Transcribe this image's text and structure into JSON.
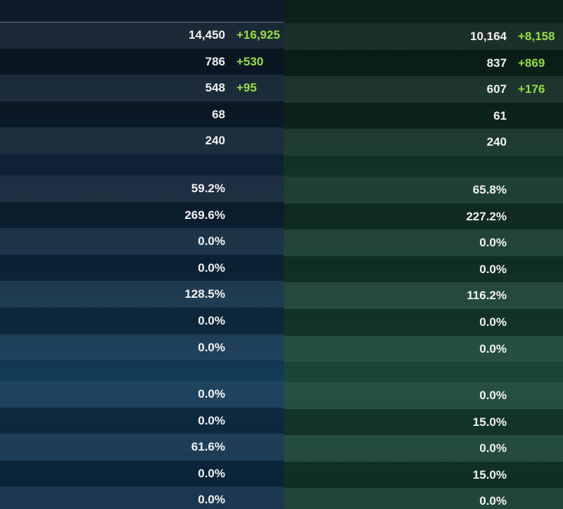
{
  "left": {
    "sections": [
      [
        {
          "value": "14,450",
          "bonus": "+16,925"
        },
        {
          "value": "786",
          "bonus": "+530"
        },
        {
          "value": "548",
          "bonus": "+95"
        },
        {
          "value": "68"
        },
        {
          "value": "240"
        }
      ],
      [
        {
          "value": "59.2%"
        },
        {
          "value": "269.6%"
        },
        {
          "value": "0.0%"
        },
        {
          "value": "0.0%"
        },
        {
          "value": "128.5%"
        },
        {
          "value": "0.0%"
        },
        {
          "value": "0.0%"
        }
      ],
      [
        {
          "value": "0.0%"
        },
        {
          "value": "0.0%"
        },
        {
          "value": "61.6%"
        },
        {
          "value": "0.0%"
        },
        {
          "value": "0.0%"
        }
      ]
    ]
  },
  "right": {
    "sections": [
      [
        {
          "value": "10,164",
          "bonus": "+8,158"
        },
        {
          "value": "837",
          "bonus": "+869"
        },
        {
          "value": "607",
          "bonus": "+176"
        },
        {
          "value": "61"
        },
        {
          "value": "240"
        }
      ],
      [
        {
          "value": "65.8%"
        },
        {
          "value": "227.2%"
        },
        {
          "value": "0.0%"
        },
        {
          "value": "0.0%"
        },
        {
          "value": "116.2%"
        },
        {
          "value": "0.0%"
        },
        {
          "value": "0.0%"
        }
      ],
      [
        {
          "value": "0.0%"
        },
        {
          "value": "15.0%"
        },
        {
          "value": "0.0%"
        },
        {
          "value": "15.0%"
        },
        {
          "value": "0.0%"
        }
      ]
    ]
  }
}
